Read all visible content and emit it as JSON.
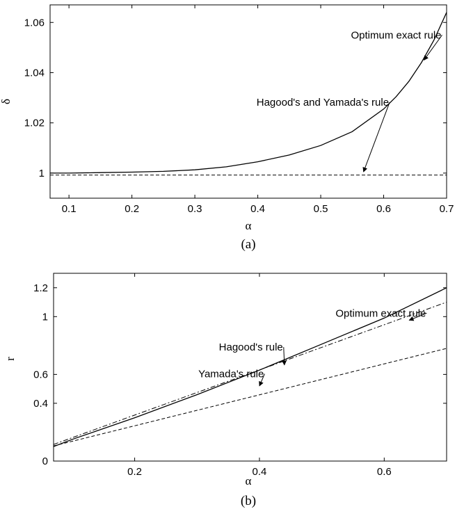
{
  "chart_data": [
    {
      "type": "line",
      "panel_label": "(a)",
      "xlabel": "α",
      "ylabel": "δ",
      "xlim": [
        0.07,
        0.7
      ],
      "ylim": [
        0.99,
        1.067
      ],
      "xticks": [
        0.1,
        0.2,
        0.3,
        0.4,
        0.5,
        0.6,
        0.7
      ],
      "xtick_labels": [
        "0.1",
        "0.2",
        "0.3",
        "0.4",
        "0.5",
        "0.6",
        "0.7"
      ],
      "yticks": [
        1.0,
        1.02,
        1.04,
        1.06
      ],
      "ytick_labels": [
        "1",
        "1.02",
        "1.04",
        "1.06"
      ],
      "grid": false,
      "series": [
        {
          "name": "Optimum exact rule",
          "style": "solid",
          "x": [
            0.07,
            0.1,
            0.15,
            0.2,
            0.25,
            0.3,
            0.35,
            0.4,
            0.45,
            0.5,
            0.55,
            0.6,
            0.62,
            0.64,
            0.66,
            0.68,
            0.7
          ],
          "y": [
            1.0,
            1.0,
            1.0002,
            1.0004,
            1.0007,
            1.0013,
            1.0025,
            1.0045,
            1.0072,
            1.011,
            1.0165,
            1.0255,
            1.0305,
            1.0365,
            1.044,
            1.053,
            1.064
          ]
        },
        {
          "name": "Hagood's and Yamada's rule",
          "style": "dashed",
          "x": [
            0.07,
            0.7
          ],
          "y": [
            0.9992,
            0.9992
          ]
        }
      ],
      "annotations": [
        {
          "text": "Optimum exact rule",
          "label_at": [
            0.548,
            1.0536
          ],
          "arrow_to": [
            0.664,
            1.045
          ]
        },
        {
          "text": "Hagood's and Yamada's rule",
          "label_at": [
            0.398,
            1.0268
          ],
          "arrow_to": [
            0.568,
            1.0005
          ]
        }
      ]
    },
    {
      "type": "line",
      "panel_label": "(b)",
      "xlabel": "α",
      "ylabel": "r",
      "xlim": [
        0.07,
        0.7
      ],
      "ylim": [
        0.0,
        1.3
      ],
      "xticks": [
        0.2,
        0.4,
        0.6
      ],
      "xtick_labels": [
        "0.2",
        "0.4",
        "0.6"
      ],
      "yticks": [
        0,
        0.4,
        0.6,
        1.0,
        1.2
      ],
      "ytick_labels": [
        "0",
        "0.4",
        "0.6",
        "1",
        "1.2"
      ],
      "grid": false,
      "series": [
        {
          "name": "Optimum exact rule",
          "style": "solid",
          "x": [
            0.07,
            0.1,
            0.2,
            0.3,
            0.4,
            0.5,
            0.6,
            0.7
          ],
          "y": [
            0.1,
            0.15,
            0.3,
            0.46,
            0.63,
            0.81,
            0.99,
            1.2
          ]
        },
        {
          "name": "Hagood's rule",
          "style": "dashdot",
          "x": [
            0.07,
            0.7
          ],
          "y": [
            0.115,
            1.1
          ]
        },
        {
          "name": "Yamada's rule",
          "style": "dashed",
          "x": [
            0.07,
            0.7
          ],
          "y": [
            0.105,
            0.78
          ]
        }
      ],
      "annotations": [
        {
          "text": "Optimum exact rule",
          "label_at": [
            0.522,
            1.0
          ],
          "arrow_to": [
            0.64,
            0.975
          ]
        },
        {
          "text": "Hagood's rule",
          "label_at": [
            0.335,
            0.765
          ],
          "arrow_to": [
            0.44,
            0.665
          ]
        },
        {
          "text": "Yamada's rule",
          "label_at": [
            0.302,
            0.58
          ],
          "arrow_to": [
            0.4,
            0.52
          ]
        }
      ]
    }
  ]
}
